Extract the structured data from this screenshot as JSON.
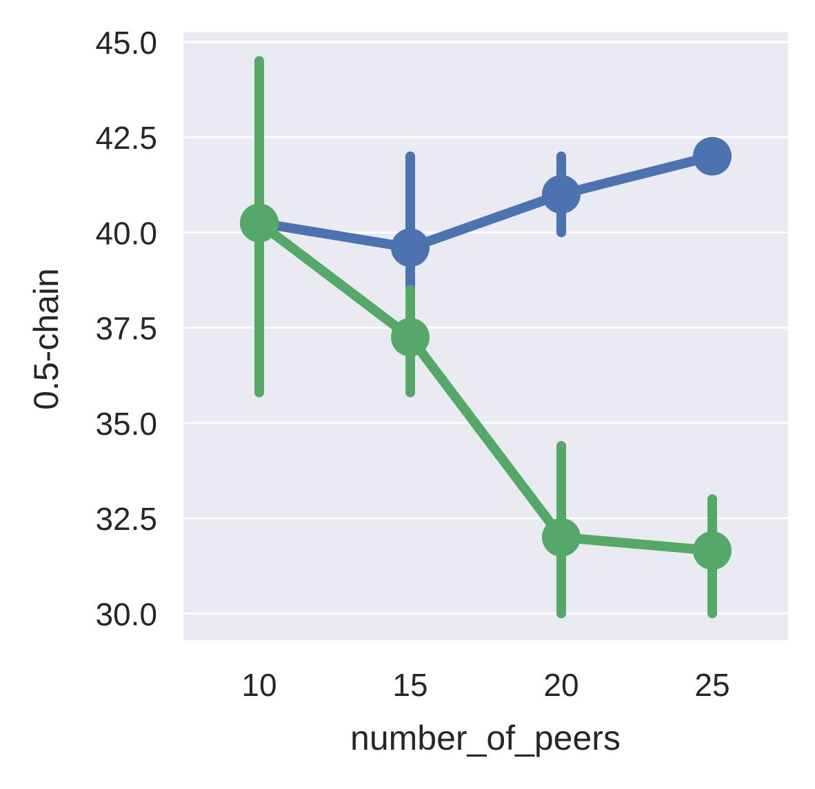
{
  "chart_data": {
    "type": "line",
    "title": "",
    "xlabel": "number_of_peers",
    "ylabel": "0.5-chain",
    "categories": [
      "10",
      "15",
      "20",
      "25"
    ],
    "ylim": [
      29.3,
      45.25
    ],
    "y_ticks": [
      "30.0",
      "32.5",
      "35.0",
      "37.5",
      "40.0",
      "42.5",
      "45.0"
    ],
    "grid": true,
    "legend": "none",
    "background_color": "#eaeaf2",
    "series": [
      {
        "color": "#4c72b0",
        "values": [
          40.25,
          39.6,
          41.0,
          42.0
        ],
        "err_low": [
          35.8,
          36.3,
          40.0,
          42.0
        ],
        "err_high": [
          44.5,
          42.0,
          42.0,
          42.0
        ]
      },
      {
        "color": "#55a868",
        "values": [
          40.25,
          37.25,
          32.0,
          31.65
        ],
        "err_low": [
          35.8,
          35.8,
          30.0,
          30.0
        ],
        "err_high": [
          44.5,
          38.5,
          34.4,
          33.0
        ]
      }
    ]
  }
}
